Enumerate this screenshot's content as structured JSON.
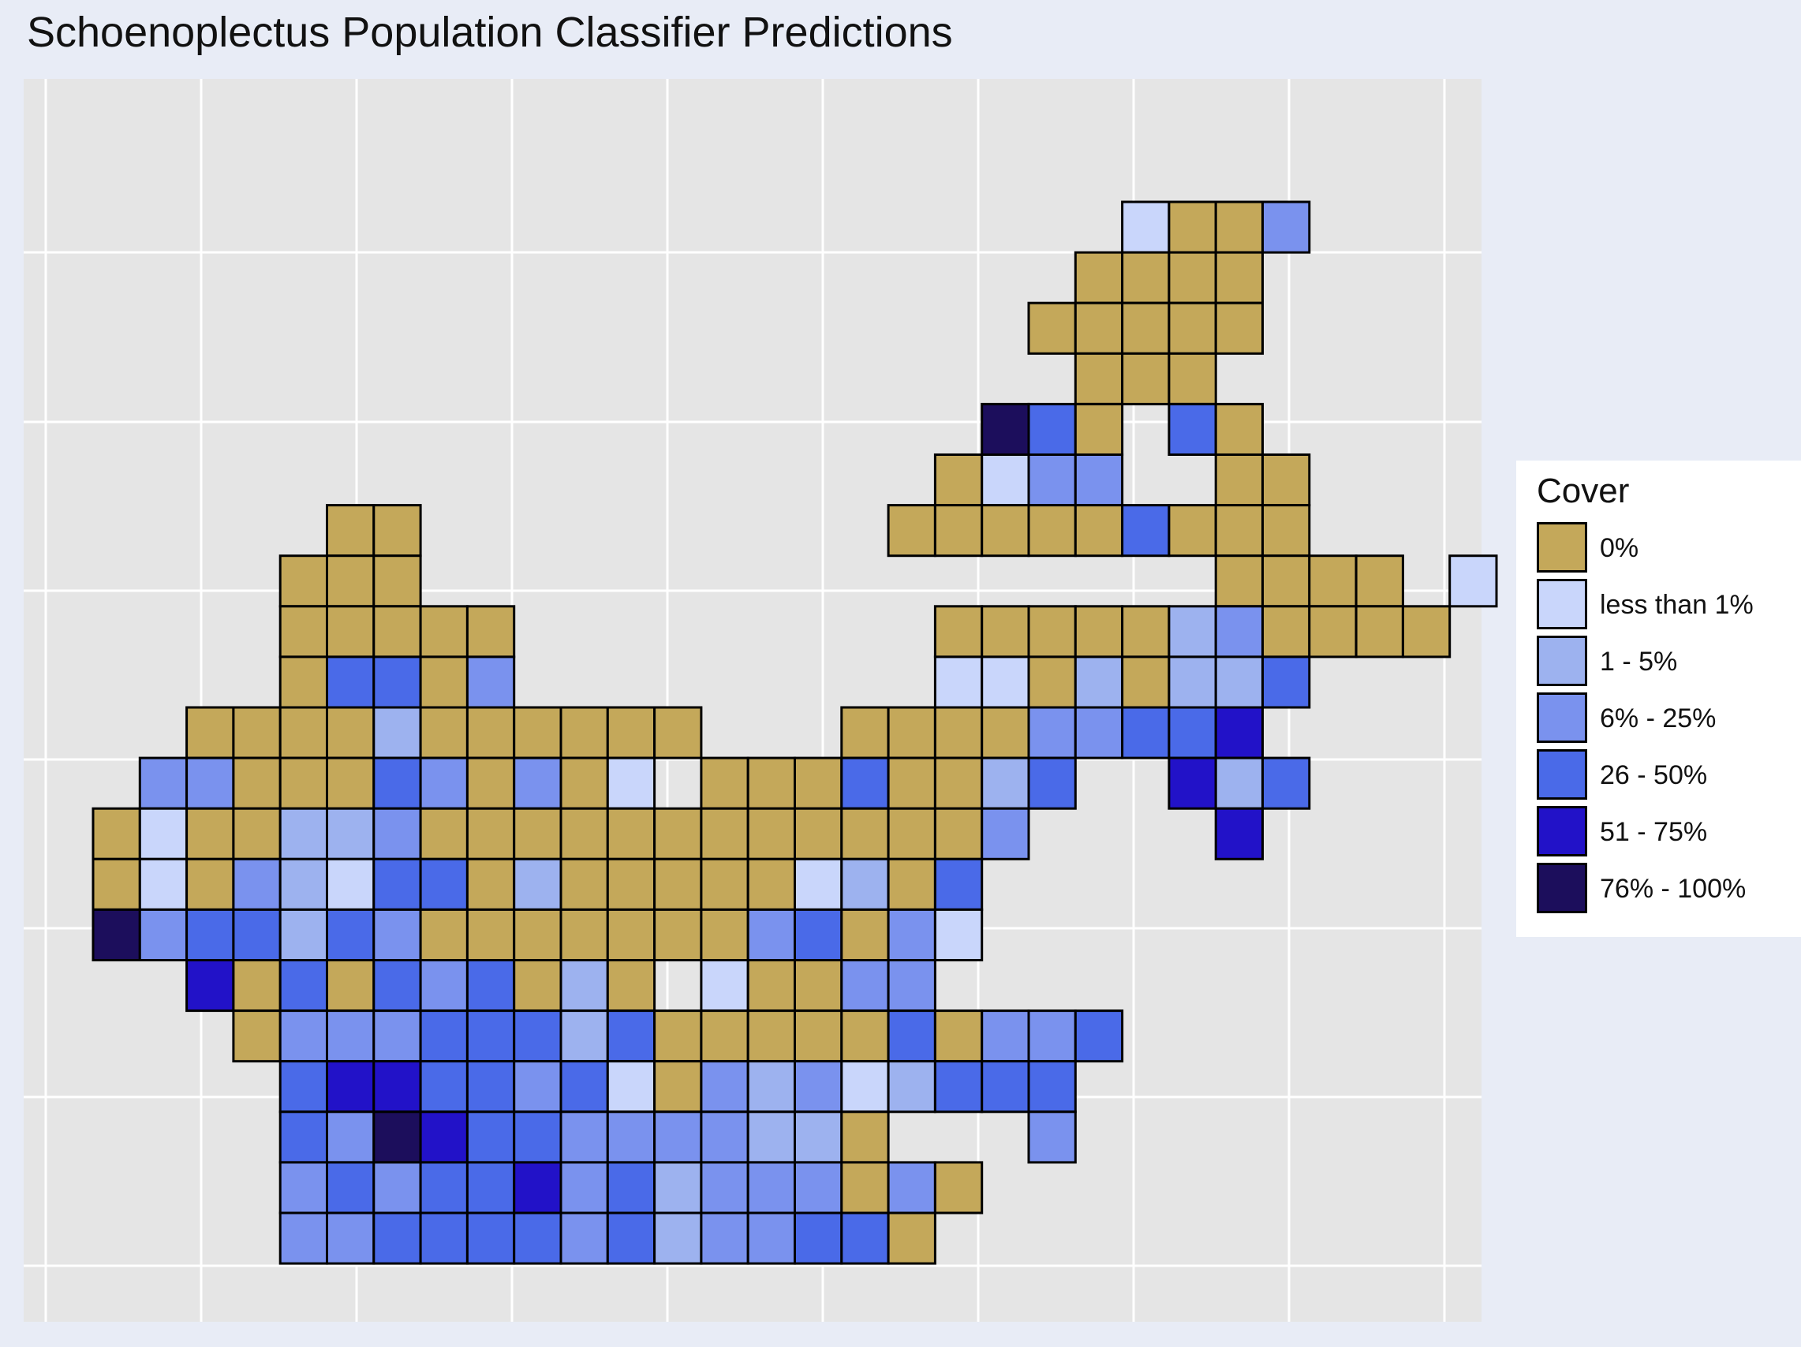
{
  "title": "Schoenoplectus Population Classifier Predictions",
  "chart_data": {
    "type": "heatmap",
    "title": "Schoenoplectus Population Classifier Predictions",
    "xlabel": "",
    "ylabel": "",
    "grid": true,
    "legend_position": "right",
    "legend_title": "Cover",
    "categories": [
      {
        "code": 0,
        "label": "0%",
        "color": "#c4a85a"
      },
      {
        "code": 1,
        "label": "less than 1%",
        "color": "#c9d6fb"
      },
      {
        "code": 2,
        "label": "1 - 5%",
        "color": "#9db2ef"
      },
      {
        "code": 3,
        "label": "6% - 25%",
        "color": "#7a92ee"
      },
      {
        "code": 4,
        "label": "26 - 50%",
        "color": "#4a6ae8"
      },
      {
        "code": 5,
        "label": "51 - 75%",
        "color": "#2212c8"
      },
      {
        "code": 6,
        "label": "76% - 100%",
        "color": "#1c0e5c"
      }
    ],
    "rows": [
      "......................1003.",
      ".....................0000..",
      "....................00000..",
      ".....................000...",
      "...................640.40..",
      "..................0133..00.",
      ".....00..........000004000.",
      "....000.................0000.1",
      "....00000.........00000230000",
      "....04403.........11020224",
      "..00002000000...000033445",
      ".33000430301.00040024..524",
      "01002230000000000003....5",
      "0103214402000001204",
      "6344243000000034031",
      "..5040434020.10033",
      "...0333444240000040334",
      "....45544341032312444",
      "....4365443333220...3",
      "....343445342333030",
      "....33444434233440"
    ]
  }
}
